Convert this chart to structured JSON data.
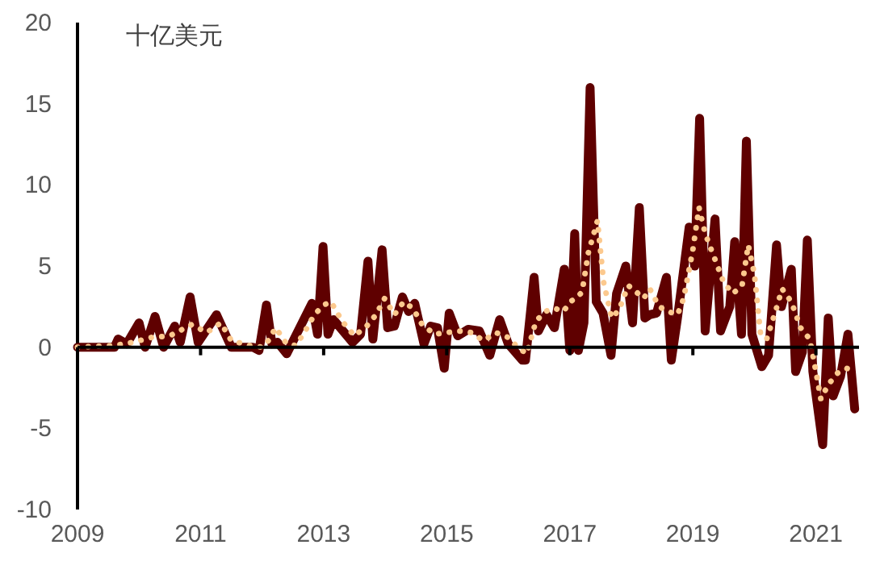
{
  "chart_data": {
    "type": "line",
    "ylabel": "十亿美元",
    "xlim": [
      2009,
      2021.7
    ],
    "ylim": [
      -10,
      20
    ],
    "xticks": [
      2009,
      2011,
      2013,
      2015,
      2017,
      2019,
      2021
    ],
    "yticks": [
      -10,
      -5,
      0,
      5,
      10,
      15,
      20
    ],
    "marker": "none",
    "series": [
      {
        "color": "#5f0000",
        "line_style": "solid",
        "x": [
          2009,
          2009.6,
          2009.66,
          2009.8,
          2010.0,
          2010.1,
          2010.26,
          2010.4,
          2010.58,
          2010.67,
          2010.83,
          2010.96,
          2011.26,
          2011.5,
          2011.85,
          2011.95,
          2012.07,
          2012.16,
          2012.25,
          2012.4,
          2012.81,
          2012.9,
          2012.99,
          2013.07,
          2013.16,
          2013.47,
          2013.6,
          2013.72,
          2013.8,
          2013.95,
          2014.04,
          2014.15,
          2014.28,
          2014.38,
          2014.48,
          2014.63,
          2014.74,
          2014.85,
          2014.96,
          2015.04,
          2015.18,
          2015.35,
          2015.53,
          2015.7,
          2015.86,
          2016.0,
          2016.23,
          2016.28,
          2016.42,
          2016.49,
          2016.62,
          2016.75,
          2016.91,
          2017.0,
          2017.08,
          2017.14,
          2017.23,
          2017.33,
          2017.43,
          2017.54,
          2017.67,
          2017.76,
          2017.91,
          2018.02,
          2018.13,
          2018.22,
          2018.3,
          2018.41,
          2018.57,
          2018.65,
          2018.75,
          2018.94,
          2019.03,
          2019.11,
          2019.2,
          2019.36,
          2019.45,
          2019.6,
          2019.68,
          2019.79,
          2019.87,
          2019.96,
          2020.12,
          2020.23,
          2020.36,
          2020.44,
          2020.6,
          2020.67,
          2020.78,
          2020.86,
          2020.95,
          2021.11,
          2021.2,
          2021.28,
          2021.4,
          2021.52,
          2021.63
        ],
        "values": [
          0,
          0,
          0.5,
          0.2,
          1.5,
          0,
          1.9,
          0,
          1.3,
          0.3,
          3.1,
          0.3,
          2.0,
          0,
          0,
          -0.2,
          2.6,
          0.2,
          0.3,
          -0.4,
          2.7,
          0.8,
          6.2,
          0.8,
          1.7,
          0.3,
          0.8,
          5.3,
          0.5,
          6.0,
          1.2,
          1.3,
          3.1,
          2.2,
          2.7,
          0.2,
          1.3,
          1.2,
          -1.3,
          2.1,
          0.7,
          1.1,
          1.0,
          -0.5,
          1.7,
          0.2,
          -0.8,
          -0.8,
          4.3,
          1.0,
          2.0,
          1.2,
          4.8,
          -0.2,
          7.0,
          -0.2,
          1.5,
          16.0,
          2.8,
          2.1,
          -0.5,
          3.3,
          5.0,
          1.5,
          8.6,
          1.8,
          2.0,
          2.1,
          4.3,
          -0.8,
          1.8,
          7.4,
          5.0,
          14.1,
          1.0,
          7.9,
          1.0,
          2.5,
          6.5,
          0.8,
          12.7,
          0.8,
          -1.2,
          -0.5,
          6.3,
          2.5,
          4.8,
          -1.5,
          -0.3,
          6.6,
          -1.5,
          -6.0,
          1.8,
          -3.0,
          -1.8,
          0.8,
          -3.8
        ]
      },
      {
        "color": "#fcc98e",
        "line_style": "dotted",
        "x": [
          2009,
          2009.6,
          2009.9,
          2010.2,
          2010.5,
          2010.86,
          2011.1,
          2011.33,
          2011.5,
          2011.8,
          2012.0,
          2012.1,
          2012.22,
          2012.4,
          2012.55,
          2012.7,
          2012.85,
          2013.0,
          2013.12,
          2013.3,
          2013.5,
          2013.7,
          2013.85,
          2013.99,
          2014.15,
          2014.3,
          2014.45,
          2014.6,
          2014.8,
          2015.0,
          2015.2,
          2015.4,
          2015.6,
          2015.8,
          2016.0,
          2016.15,
          2016.3,
          2016.45,
          2016.6,
          2016.75,
          2016.9,
          2017.0,
          2017.1,
          2017.2,
          2017.3,
          2017.45,
          2017.55,
          2017.68,
          2017.8,
          2017.95,
          2018.05,
          2018.2,
          2018.3,
          2018.45,
          2018.6,
          2018.75,
          2018.85,
          2019.0,
          2019.1,
          2019.2,
          2019.35,
          2019.5,
          2019.65,
          2019.8,
          2019.9,
          2020.0,
          2020.1,
          2020.2,
          2020.35,
          2020.45,
          2020.6,
          2020.75,
          2020.9,
          2021.0,
          2021.08,
          2021.2,
          2021.35,
          2021.5,
          2021.63
        ],
        "values": [
          0,
          0.1,
          0.3,
          0.6,
          0.7,
          1.4,
          0.9,
          1.5,
          0.4,
          0.1,
          0,
          0.4,
          1.2,
          0.2,
          0.1,
          1.0,
          2.0,
          2.6,
          2.8,
          1.6,
          0.7,
          1.3,
          2.0,
          3.0,
          2.0,
          2.8,
          2.4,
          1.4,
          0.8,
          0.9,
          1.0,
          0.9,
          0.4,
          0.9,
          0.6,
          0,
          -0.4,
          1.6,
          2.2,
          2.4,
          2.2,
          2.8,
          3.0,
          3.4,
          5.8,
          7.8,
          4.0,
          1.8,
          2.3,
          3.8,
          3.5,
          3.0,
          3.6,
          2.5,
          2.2,
          2.0,
          3.0,
          6.0,
          8.6,
          7.0,
          5.5,
          4.0,
          3.3,
          3.8,
          6.3,
          4.5,
          0.8,
          0.5,
          2.3,
          3.6,
          2.8,
          1.2,
          0.5,
          -1.5,
          -3.2,
          -2.3,
          -1.6,
          -1.3,
          -1.5
        ]
      }
    ]
  }
}
